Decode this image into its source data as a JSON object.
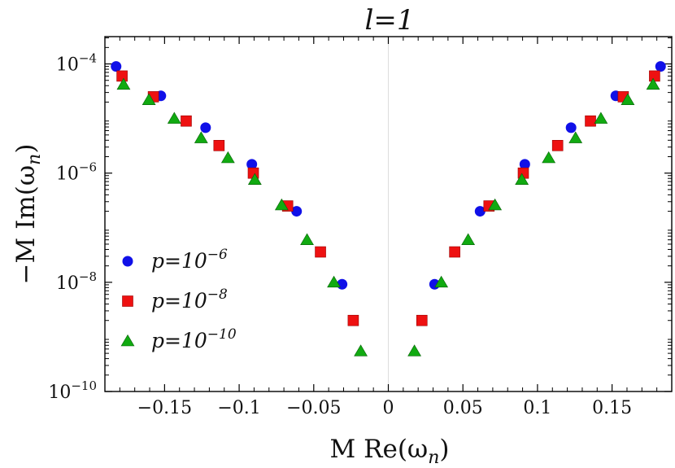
{
  "chart_data": {
    "type": "scatter",
    "title": "l=1",
    "xlabel": "M Re(ωn)",
    "ylabel": "−M Im(ωn)",
    "xlim": [
      -0.19,
      0.19
    ],
    "ylim_log10": [
      -10,
      -3.5
    ],
    "y_scale": "log",
    "grid": false,
    "legend_position": "bottom-left",
    "x_ticks": [
      -0.15,
      -0.1,
      -0.05,
      0,
      0.05,
      0.1,
      0.15
    ],
    "x_tick_labels": [
      "−0.15",
      "−0.1",
      "−0.05",
      "0",
      "0.05",
      "0.1",
      "0.15"
    ],
    "y_ticks_exp": [
      -10,
      -8,
      -6,
      -4
    ],
    "y_tick_base": "10",
    "zero_line": true,
    "series": [
      {
        "name": "p=10⁻⁶",
        "marker": "circle",
        "color": "#1010e8",
        "points": [
          [
            -0.1825,
            9e-05
          ],
          [
            -0.1525,
            2.6e-05
          ],
          [
            -0.1225,
            6.8e-06
          ],
          [
            -0.0915,
            1.45e-06
          ],
          [
            -0.0615,
            2e-07
          ],
          [
            -0.031,
            9.2e-09
          ],
          [
            0.031,
            9.2e-09
          ],
          [
            0.0615,
            2e-07
          ],
          [
            0.0915,
            1.45e-06
          ],
          [
            0.1225,
            6.8e-06
          ],
          [
            0.1525,
            2.6e-05
          ],
          [
            0.1825,
            9e-05
          ]
        ]
      },
      {
        "name": "p=10⁻⁸",
        "marker": "square",
        "color": "#ee1111",
        "points": [
          [
            -0.1785,
            6e-05
          ],
          [
            -0.1575,
            2.5e-05
          ],
          [
            -0.1355,
            9e-06
          ],
          [
            -0.1135,
            3.2e-06
          ],
          [
            -0.0905,
            1e-06
          ],
          [
            -0.0675,
            2.5e-07
          ],
          [
            -0.0455,
            3.6e-08
          ],
          [
            -0.0235,
            2e-09
          ],
          [
            0.0225,
            2e-09
          ],
          [
            0.0445,
            3.6e-08
          ],
          [
            0.0675,
            2.5e-07
          ],
          [
            0.0905,
            1e-06
          ],
          [
            0.1135,
            3.2e-06
          ],
          [
            0.1355,
            9e-06
          ],
          [
            0.1575,
            2.5e-05
          ],
          [
            0.1785,
            6e-05
          ]
        ]
      },
      {
        "name": "p=10⁻¹⁰",
        "marker": "triangle",
        "color": "#11aa11",
        "points": [
          [
            -0.1775,
            4.2e-05
          ],
          [
            -0.1605,
            2.2e-05
          ],
          [
            -0.1435,
            1e-05
          ],
          [
            -0.1255,
            4.4e-06
          ],
          [
            -0.1075,
            1.9e-06
          ],
          [
            -0.0895,
            7.6e-07
          ],
          [
            -0.0715,
            2.6e-07
          ],
          [
            -0.0545,
            6e-08
          ],
          [
            -0.0365,
            1e-08
          ],
          [
            -0.0185,
            5.5e-10
          ],
          [
            0.0175,
            5.5e-10
          ],
          [
            0.0355,
            1e-08
          ],
          [
            0.0535,
            6e-08
          ],
          [
            0.0715,
            2.6e-07
          ],
          [
            0.0895,
            7.6e-07
          ],
          [
            0.1075,
            1.9e-06
          ],
          [
            0.1255,
            4.4e-06
          ],
          [
            0.1425,
            1e-05
          ],
          [
            0.1605,
            2.2e-05
          ],
          [
            0.1775,
            4.2e-05
          ]
        ]
      }
    ]
  }
}
